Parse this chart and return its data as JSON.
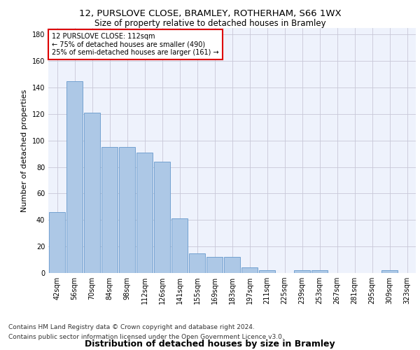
{
  "title_line1": "12, PURSLOVE CLOSE, BRAMLEY, ROTHERHAM, S66 1WX",
  "title_line2": "Size of property relative to detached houses in Bramley",
  "xlabel": "Distribution of detached houses by size in Bramley",
  "ylabel": "Number of detached properties",
  "categories": [
    "42sqm",
    "56sqm",
    "70sqm",
    "84sqm",
    "98sqm",
    "112sqm",
    "126sqm",
    "141sqm",
    "155sqm",
    "169sqm",
    "183sqm",
    "197sqm",
    "211sqm",
    "225sqm",
    "239sqm",
    "253sqm",
    "267sqm",
    "281sqm",
    "295sqm",
    "309sqm",
    "323sqm"
  ],
  "values": [
    46,
    145,
    121,
    95,
    95,
    91,
    84,
    41,
    15,
    12,
    12,
    4,
    2,
    0,
    2,
    2,
    0,
    0,
    0,
    2,
    0
  ],
  "bar_color": "#adc8e6",
  "bar_edge_color": "#6699cc",
  "highlight_index": 5,
  "ylim": [
    0,
    185
  ],
  "yticks": [
    0,
    20,
    40,
    60,
    80,
    100,
    120,
    140,
    160,
    180
  ],
  "annotation_box_text": "12 PURSLOVE CLOSE: 112sqm\n← 75% of detached houses are smaller (490)\n25% of semi-detached houses are larger (161) →",
  "annotation_box_color": "#dd0000",
  "annotation_box_fill": "#ffffff",
  "footer_line1": "Contains HM Land Registry data © Crown copyright and database right 2024.",
  "footer_line2": "Contains public sector information licensed under the Open Government Licence v3.0.",
  "bg_color": "#eef2fc",
  "grid_color": "#c8c8d8",
  "title_fontsize": 9.5,
  "subtitle_fontsize": 8.5,
  "xlabel_fontsize": 9,
  "ylabel_fontsize": 8,
  "tick_fontsize": 7,
  "footer_fontsize": 6.5
}
